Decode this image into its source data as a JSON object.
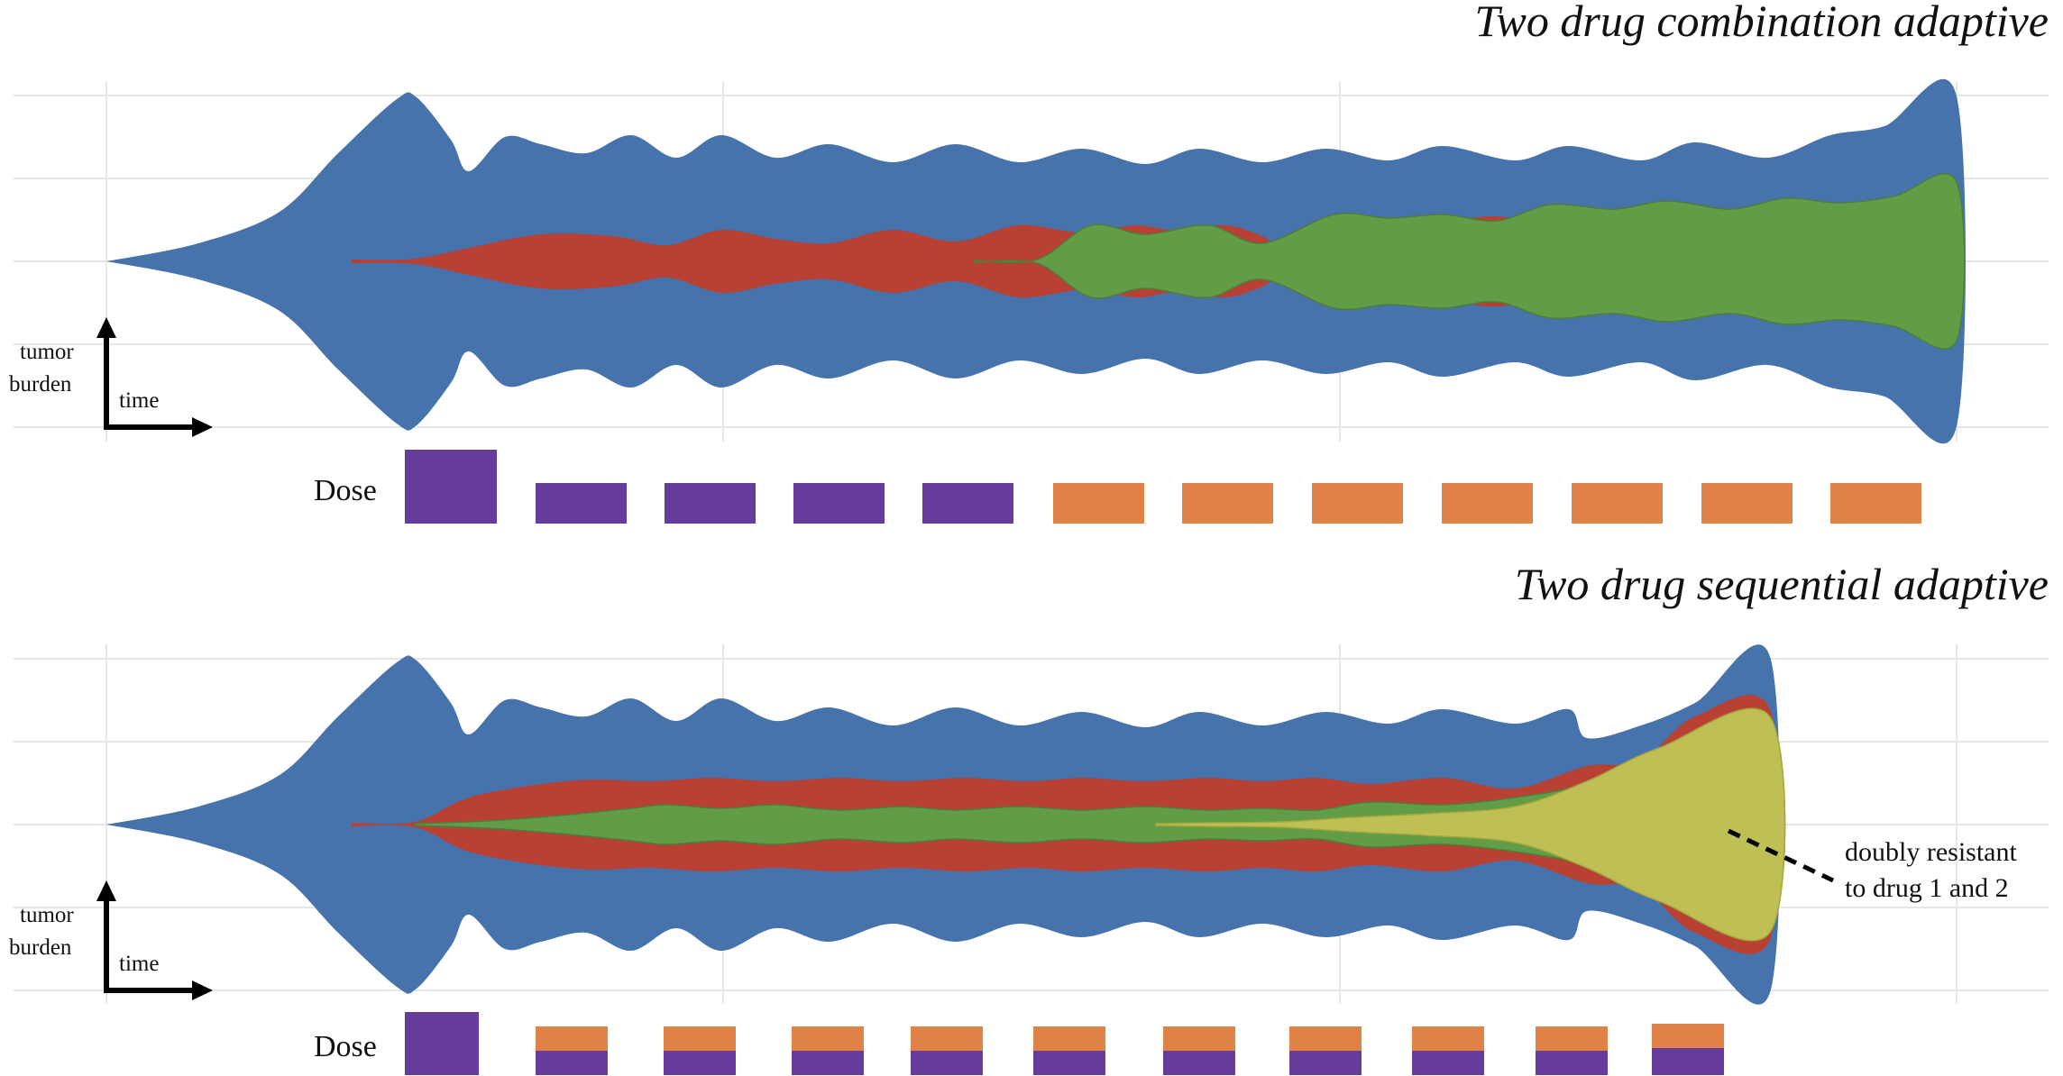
{
  "colors": {
    "sensitive": "#4673ab",
    "resistant_drug1": "#b84133",
    "resistant_drug2": "#619c46",
    "doubly_resistant": "#bebf55",
    "dose_drug1": "#673c9c",
    "dose_drug2": "#e18347",
    "arrow": "#000000",
    "grid": "#e6e6e6"
  },
  "panels": [
    {
      "title": "Two drug combination adaptive",
      "axis": {
        "y_label_line1": "tumor",
        "y_label_line2": "burden",
        "x_label": "time"
      },
      "dose_label": "Dose",
      "doses": [
        {
          "type": "drug1",
          "level": 1.0
        },
        {
          "type": "drug1",
          "level": 0.55
        },
        {
          "type": "drug1",
          "level": 0.55
        },
        {
          "type": "drug1",
          "level": 0.55
        },
        {
          "type": "drug1",
          "level": 0.55
        },
        {
          "type": "drug2",
          "level": 0.55
        },
        {
          "type": "drug2",
          "level": 0.55
        },
        {
          "type": "drug2",
          "level": 0.55
        },
        {
          "type": "drug2",
          "level": 0.55
        },
        {
          "type": "drug2",
          "level": 0.55
        },
        {
          "type": "drug2",
          "level": 0.55
        },
        {
          "type": "drug2",
          "level": 0.55
        }
      ]
    },
    {
      "title": "Two drug sequential adaptive",
      "axis": {
        "y_label_line1": "tumor",
        "y_label_line2": "burden",
        "x_label": "time"
      },
      "dose_label": "Dose",
      "annotation_line1": "doubly resistant",
      "annotation_line2": "to drug 1 and 2",
      "doses": [
        {
          "type": "drug1",
          "level": 1.0
        },
        {
          "type": "combo",
          "level": 0.6
        },
        {
          "type": "combo",
          "level": 0.6
        },
        {
          "type": "combo",
          "level": 0.6
        },
        {
          "type": "combo",
          "level": 0.6
        },
        {
          "type": "combo",
          "level": 0.6
        },
        {
          "type": "combo",
          "level": 0.6
        },
        {
          "type": "combo",
          "level": 0.6
        },
        {
          "type": "combo",
          "level": 0.6
        },
        {
          "type": "combo",
          "level": 0.6
        },
        {
          "type": "combo",
          "level": 0.6
        }
      ]
    }
  ]
}
